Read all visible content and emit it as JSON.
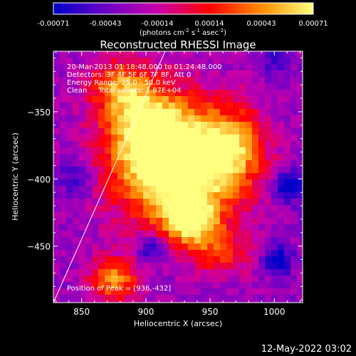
{
  "colorbar": {
    "tick_labels": [
      "-0.00071",
      "-0.00043",
      "-0.00014",
      "0.00014",
      "0.00043",
      "0.00071"
    ],
    "unit_prefix": "(photons cm",
    "unit_exp1": "-2",
    "unit_mid1": " s",
    "unit_exp2": "-1",
    "unit_mid2": " asec",
    "unit_exp3": "-2",
    "unit_suffix": ")",
    "colormap": [
      "#0000c8",
      "#6a00c8",
      "#c800aa",
      "#ff0000",
      "#ff8c00",
      "#ffff80"
    ]
  },
  "chart_data": {
    "type": "heatmap",
    "title": "Reconstructed RHESSI Image",
    "xlabel": "Heliocentric X (arcsec)",
    "ylabel": "Heliocentric Y (arcsec)",
    "xlim": [
      828,
      1022
    ],
    "ylim": [
      -492,
      -305
    ],
    "x_ticks": [
      850,
      900,
      950,
      1000
    ],
    "y_ticks": [
      -350,
      -400,
      -450
    ],
    "x_tick_labels": [
      "850",
      "900",
      "950",
      "1000"
    ],
    "y_tick_labels": [
      "−350",
      "−400",
      "−450"
    ],
    "limb_line": {
      "x": [
        828,
        915
      ],
      "y": [
        -492,
        -305
      ]
    },
    "peak": {
      "x": 936,
      "y": -432
    },
    "annotations": [
      "20-Mar-2013 01:18:48.000 to 01:24:48.000",
      "Detectors: 3F 4F 5F 6F 7F 8F, Att 0",
      "Energy Range: 25.0 - 50.0 keV",
      "Clean     Total counts: 1.87E+04",
      "Position of Peak = [936,-432]"
    ],
    "sources": [
      {
        "x": 925,
        "y": -390,
        "sx": 34,
        "sy": 30,
        "amp": 0.95
      },
      {
        "x": 935,
        "y": -432,
        "sx": 14,
        "sy": 12,
        "amp": 0.55
      },
      {
        "x": 898,
        "y": -355,
        "sx": 22,
        "sy": 22,
        "amp": 0.45
      },
      {
        "x": 970,
        "y": -375,
        "sx": 16,
        "sy": 20,
        "amp": 0.35
      },
      {
        "x": 875,
        "y": -475,
        "sx": 14,
        "sy": 12,
        "amp": 0.5
      },
      {
        "x": 958,
        "y": -455,
        "sx": 16,
        "sy": 12,
        "amp": 0.3
      },
      {
        "x": 878,
        "y": -330,
        "sx": 16,
        "sy": 14,
        "amp": 0.35
      },
      {
        "x": 905,
        "y": -452,
        "sx": 8,
        "sy": 8,
        "amp": -0.3
      },
      {
        "x": 1003,
        "y": -460,
        "sx": 8,
        "sy": 8,
        "amp": -0.35
      },
      {
        "x": 845,
        "y": -400,
        "sx": 10,
        "sy": 10,
        "amp": -0.2
      },
      {
        "x": 1012,
        "y": -405,
        "sx": 9,
        "sy": 9,
        "amp": -0.35
      },
      {
        "x": 1000,
        "y": -312,
        "sx": 8,
        "sy": 8,
        "amp": -0.2
      }
    ]
  },
  "footer": {
    "timestamp": "12-May-2022 03:02"
  }
}
